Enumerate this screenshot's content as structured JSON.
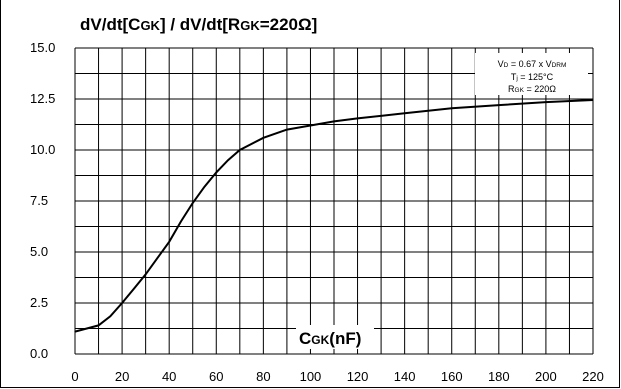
{
  "chart_data": {
    "type": "line",
    "title_parts": [
      "dV/dt[C",
      "GK",
      "] / dV/dt[R",
      "GK",
      "=220Ω]"
    ],
    "xlabel_parts": [
      "C",
      "GK",
      "(nF)"
    ],
    "ylabel": "",
    "xlim": [
      0,
      220
    ],
    "ylim": [
      0,
      15
    ],
    "xticks": [
      0,
      20,
      40,
      60,
      80,
      100,
      120,
      140,
      160,
      180,
      200,
      220
    ],
    "yticks": [
      "0.0",
      "2.5",
      "5.0",
      "7.5",
      "10.0",
      "12.5",
      "15.0"
    ],
    "grid": true,
    "annotations": [
      [
        "V",
        "D",
        " = 0.67 x V",
        "DRM"
      ],
      [
        "T",
        "j",
        " = 125°C"
      ],
      [
        "R",
        "GK",
        " = 220Ω"
      ]
    ],
    "series": [
      {
        "x": [
          0,
          5,
          10,
          15,
          20,
          25,
          30,
          35,
          40,
          45,
          50,
          55,
          60,
          65,
          70,
          80,
          90,
          100,
          110,
          120,
          140,
          160,
          180,
          200,
          220
        ],
        "y": [
          1.1,
          1.25,
          1.4,
          1.85,
          2.5,
          3.2,
          3.9,
          4.7,
          5.5,
          6.5,
          7.4,
          8.2,
          8.9,
          9.5,
          10.0,
          10.6,
          11.0,
          11.2,
          11.4,
          11.55,
          11.8,
          12.05,
          12.2,
          12.35,
          12.45
        ]
      }
    ]
  }
}
